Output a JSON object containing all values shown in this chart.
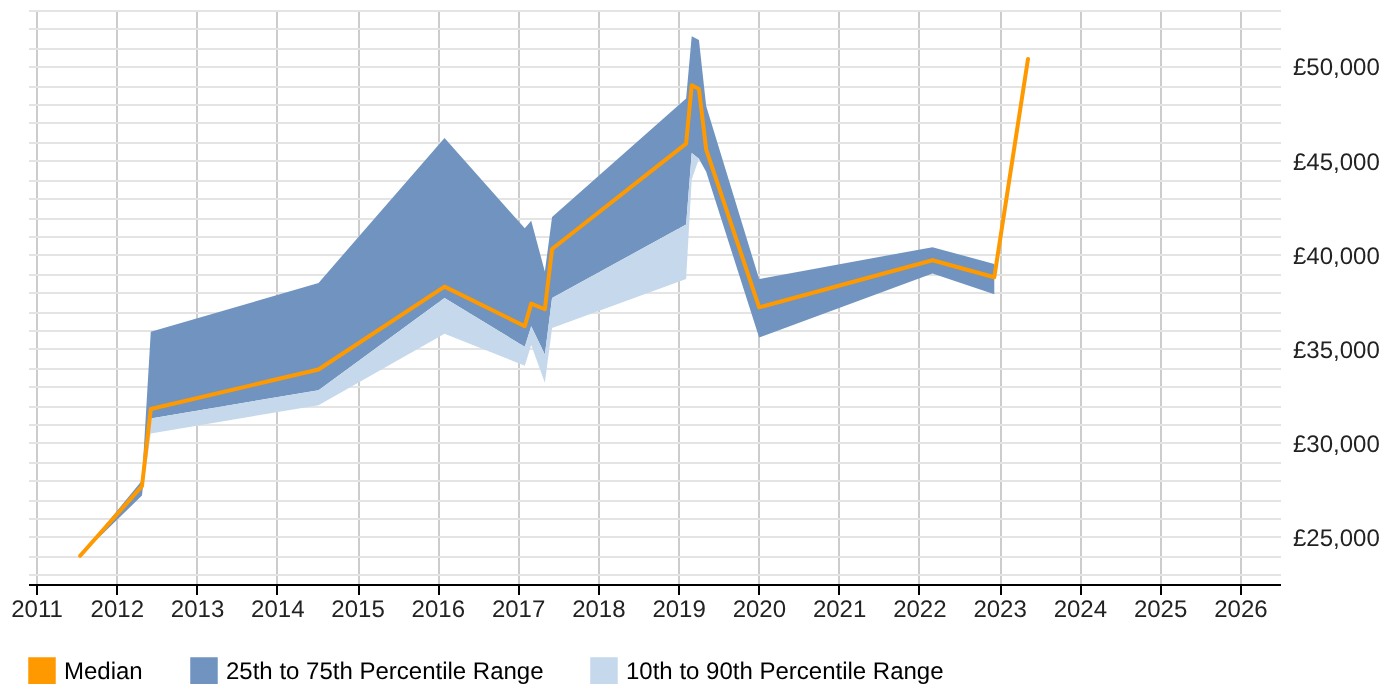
{
  "chart_data": {
    "type": "line",
    "x": [
      2011.55,
      2012.32,
      2012.43,
      2014.52,
      2016.09,
      2017.09,
      2017.17,
      2017.34,
      2017.43,
      2019.1,
      2019.17,
      2019.26,
      2019.35,
      2020.01,
      2022.17,
      2022.94,
      2023.36
    ],
    "series": [
      {
        "name": "Median",
        "color": "#ff9900",
        "values": [
          24000,
          27700,
          31800,
          33900,
          38300,
          36200,
          37400,
          37100,
          40300,
          45900,
          49000,
          48800,
          45600,
          37200,
          39700,
          38800,
          50400
        ]
      },
      {
        "name": "25th to 75th Percentile Range",
        "type": "area",
        "color": "#7094bf",
        "values": [
          null,
          null,
          null,
          null,
          null,
          null,
          null,
          null,
          null,
          null,
          null,
          null,
          null,
          null,
          null,
          null,
          null
        ],
        "lower": [
          24000,
          27200,
          31300,
          32800,
          37700,
          35100,
          36200,
          34700,
          37700,
          41600,
          45400,
          45100,
          44400,
          35600,
          39000,
          37900,
          null
        ],
        "upper": [
          24000,
          28000,
          35900,
          38500,
          46200,
          41400,
          41800,
          39100,
          42000,
          48300,
          51600,
          51400,
          47900,
          38700,
          40400,
          39500,
          null
        ]
      },
      {
        "name": "10th to 90th Percentile Range",
        "type": "area",
        "color": "#c6d8ec",
        "values": [
          null,
          null,
          null,
          null,
          null,
          null,
          null,
          null,
          null,
          null,
          null,
          null,
          null,
          null,
          null,
          null,
          null
        ],
        "lower": [
          24000,
          27200,
          30500,
          32000,
          35800,
          34100,
          35200,
          33200,
          36100,
          38700,
          44000,
          45100,
          44400,
          35600,
          39000,
          37900,
          null
        ],
        "upper": [
          24000,
          27200,
          31300,
          32800,
          37700,
          35100,
          36200,
          34700,
          37700,
          41600,
          45400,
          45100,
          44400,
          35600,
          39000,
          37900,
          null
        ]
      }
    ],
    "xlim": [
      2010.9,
      2026.5
    ],
    "xticks": [
      2011,
      2012,
      2013,
      2014,
      2015,
      2016,
      2017,
      2018,
      2019,
      2020,
      2021,
      2022,
      2023,
      2024,
      2025,
      2026
    ],
    "ylim": [
      22500,
      53000
    ],
    "yticks": [
      {
        "value": 23000,
        "label": null
      },
      {
        "value": 24000,
        "label": null
      },
      {
        "value": 25000,
        "label": "£25,000"
      },
      {
        "value": 26000,
        "label": null
      },
      {
        "value": 27000,
        "label": null
      },
      {
        "value": 28000,
        "label": null
      },
      {
        "value": 29000,
        "label": null
      },
      {
        "value": 30000,
        "label": "£30,000"
      },
      {
        "value": 31000,
        "label": null
      },
      {
        "value": 32000,
        "label": null
      },
      {
        "value": 33000,
        "label": null
      },
      {
        "value": 34000,
        "label": null
      },
      {
        "value": 35000,
        "label": "£35,000"
      },
      {
        "value": 36000,
        "label": null
      },
      {
        "value": 37000,
        "label": null
      },
      {
        "value": 38000,
        "label": null
      },
      {
        "value": 39000,
        "label": null
      },
      {
        "value": 40000,
        "label": "£40,000"
      },
      {
        "value": 41000,
        "label": null
      },
      {
        "value": 42000,
        "label": null
      },
      {
        "value": 43000,
        "label": null
      },
      {
        "value": 44000,
        "label": null
      },
      {
        "value": 45000,
        "label": "£45,000"
      },
      {
        "value": 46000,
        "label": null
      },
      {
        "value": 47000,
        "label": null
      },
      {
        "value": 48000,
        "label": null
      },
      {
        "value": 49000,
        "label": null
      },
      {
        "value": 50000,
        "label": "£50,000"
      },
      {
        "value": 51000,
        "label": null
      },
      {
        "value": 52000,
        "label": null
      },
      {
        "value": 53000,
        "label": null
      }
    ],
    "grid": true,
    "legend": "bottom"
  }
}
